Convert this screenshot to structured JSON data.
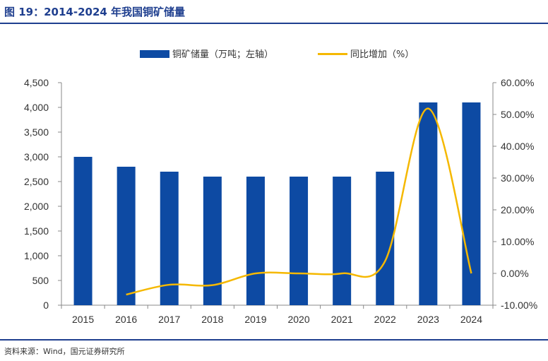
{
  "title": "图 19：2014-2024 年我国铜矿储量",
  "source": "资料来源：Wind，国元证券研究所",
  "colors": {
    "bar": "#0d4aa3",
    "line": "#f5b800",
    "title": "#1f3f8f",
    "axis": "#888888"
  },
  "chart_data": {
    "type": "bar",
    "categories": [
      "2015",
      "2016",
      "2017",
      "2018",
      "2019",
      "2020",
      "2021",
      "2022",
      "2023",
      "2024"
    ],
    "series": [
      {
        "name": "铜矿储量（万吨；左轴）",
        "type": "bar",
        "axis": "left",
        "values": [
          3000,
          2800,
          2700,
          2600,
          2600,
          2600,
          2600,
          2700,
          4100,
          4100
        ]
      },
      {
        "name": "同比增加（%）",
        "type": "line",
        "axis": "right",
        "smooth": true,
        "values": [
          null,
          -6.67,
          -3.57,
          -3.7,
          0.0,
          0.0,
          0.0,
          3.85,
          51.85,
          0.0
        ]
      }
    ],
    "left_axis": {
      "ylim": [
        0,
        4500
      ],
      "ticks": [
        0,
        500,
        1000,
        1500,
        2000,
        2500,
        3000,
        3500,
        4000,
        4500
      ],
      "tick_labels": [
        "0",
        "500",
        "1,000",
        "1,500",
        "2,000",
        "2,500",
        "3,000",
        "3,500",
        "4,000",
        "4,500"
      ]
    },
    "right_axis": {
      "ylim": [
        -10,
        60
      ],
      "ticks": [
        -10,
        0,
        10,
        20,
        30,
        40,
        50,
        60
      ],
      "tick_labels": [
        "-10.00%",
        "0.00%",
        "10.00%",
        "20.00%",
        "30.00%",
        "40.00%",
        "50.00%",
        "60.00%"
      ]
    },
    "grid": false,
    "legend_position": "top"
  }
}
